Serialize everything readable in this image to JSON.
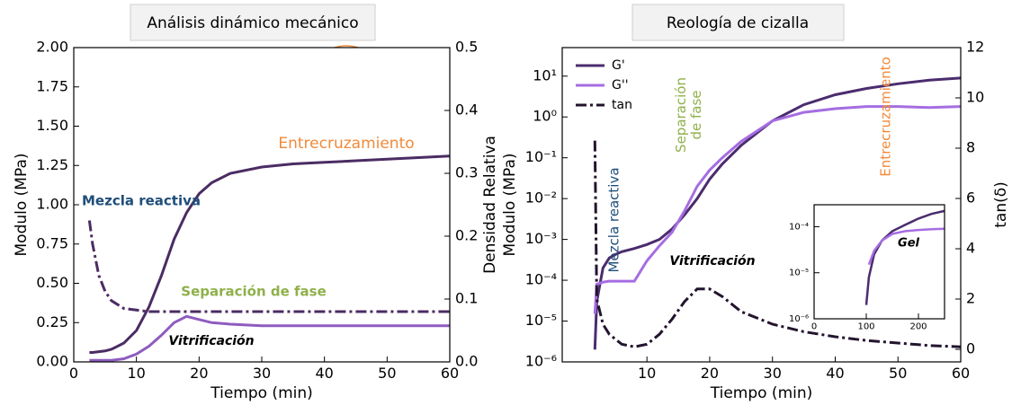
{
  "chart_data": [
    {
      "type": "line",
      "title": "Análisis dinámico mecánico",
      "x_label": "Tiempo (min)",
      "y_label": "Modulo (MPa)",
      "y2_label": "Densidad Relativa",
      "x": [
        2.5,
        3,
        4,
        5,
        6,
        8,
        10,
        12,
        14,
        16,
        18,
        20,
        22,
        25,
        30,
        35,
        40,
        45,
        50,
        55,
        60
      ],
      "xlim": [
        0,
        60
      ],
      "xticks": [
        0,
        10,
        20,
        30,
        40,
        50,
        60
      ],
      "ylim": [
        0,
        2
      ],
      "yticks": [
        {
          "value": 0,
          "label": "0.00"
        },
        {
          "value": 0.25,
          "label": "0.25"
        },
        {
          "value": 0.5,
          "label": "0.50"
        },
        {
          "value": 0.75,
          "label": "0.75"
        },
        {
          "value": 1,
          "label": "1.00"
        },
        {
          "value": 1.25,
          "label": "1.25"
        },
        {
          "value": 1.5,
          "label": "1.50"
        },
        {
          "value": 1.75,
          "label": "1.75"
        },
        {
          "value": 2,
          "label": "2.00"
        }
      ],
      "y2lim": [
        0,
        0.5
      ],
      "y2ticks": [
        {
          "value": 0,
          "label": "0.0"
        },
        0.1,
        0.2,
        0.3,
        0.4,
        0.5
      ],
      "series": [
        {
          "color": "#4b2c63",
          "style": "solid",
          "values": [
            0.06,
            0.06,
            0.065,
            0.07,
            0.08,
            0.12,
            0.2,
            0.35,
            0.55,
            0.78,
            0.95,
            1.07,
            1.14,
            1.2,
            1.24,
            1.26,
            1.27,
            1.28,
            1.29,
            1.3,
            1.31
          ]
        },
        {
          "color": "#8e5cc0",
          "style": "solid",
          "values": [
            0.01,
            0.01,
            0.01,
            0.01,
            0.01,
            0.02,
            0.05,
            0.1,
            0.17,
            0.25,
            0.29,
            0.27,
            0.25,
            0.24,
            0.23,
            0.23,
            0.23,
            0.23,
            0.23,
            0.23,
            0.23
          ]
        },
        {
          "color": "#4b2c63",
          "style": "dash-dot",
          "values": [
            0.9,
            0.75,
            0.55,
            0.45,
            0.39,
            0.34,
            0.33,
            0.32,
            0.32,
            0.32,
            0.32,
            0.32,
            0.32,
            0.32,
            0.32,
            0.32,
            0.32,
            0.32,
            0.32,
            0.32,
            0.32
          ]
        }
      ],
      "annotations": [
        {
          "text": "Entrecruzamiento",
          "color": "#f08a3a"
        },
        {
          "text": "Mezcla reactiva",
          "color": "#1f4e79"
        },
        {
          "text": "Separación de fase",
          "color": "#8fb04a"
        },
        {
          "text": "Vitrificación",
          "color": "#000000"
        }
      ]
    },
    {
      "type": "line",
      "title": "Reología de cizalla",
      "x_label": "Tiempo (min)",
      "y_label": "Modulo (MPa)",
      "y2_label": "tan(δ)",
      "y_scale": "log",
      "legend": "upper left",
      "x": [
        1.7,
        2,
        3,
        4,
        5,
        6,
        8,
        10,
        12,
        14,
        16,
        18,
        20,
        22,
        25,
        30,
        35,
        40,
        45,
        50,
        55,
        60
      ],
      "xlim": [
        -3.5,
        60
      ],
      "xticks": [
        10,
        20,
        30,
        40,
        50,
        60
      ],
      "ylim": [
        1e-06,
        50
      ],
      "yticks": [
        {
          "value": 1e-06,
          "label": "10⁻⁶"
        },
        {
          "value": 1e-05,
          "label": "10⁻⁵"
        },
        {
          "value": 0.0001,
          "label": "10⁻⁴"
        },
        {
          "value": 0.001,
          "label": "10⁻³"
        },
        {
          "value": 0.01,
          "label": "10⁻²"
        },
        {
          "value": 0.1,
          "label": "10⁻¹"
        },
        {
          "value": 1,
          "label": "10⁰"
        },
        {
          "value": 10,
          "label": "10¹"
        }
      ],
      "y2lim": [
        -0.5,
        12
      ],
      "y2ticks": [
        0,
        2,
        4,
        6,
        8,
        10,
        12
      ],
      "series": [
        {
          "name": "G'",
          "color": "#4b2c6e",
          "style": "solid",
          "values": [
            2e-06,
            3e-05,
            0.0002,
            0.00035,
            0.00043,
            0.0005,
            0.0006,
            0.00075,
            0.001,
            0.0018,
            0.004,
            0.01,
            0.03,
            0.07,
            0.2,
            0.8,
            2,
            3.5,
            5,
            6.5,
            8,
            9
          ]
        },
        {
          "name": "G''",
          "color": "#a56de2",
          "style": "solid",
          "values": [
            1.5e-05,
            8e-05,
            9e-05,
            9.5e-05,
            9.5e-05,
            9.5e-05,
            9.5e-05,
            0.0003,
            0.0007,
            0.0015,
            0.005,
            0.02,
            0.05,
            0.1,
            0.25,
            0.8,
            1.3,
            1.6,
            1.8,
            1.8,
            1.7,
            1.8
          ]
        },
        {
          "name": "tan",
          "color": "#23142e",
          "style": "dash-dot",
          "axis": "y2",
          "values": [
            8.3,
            2,
            1,
            0.6,
            0.4,
            0.2,
            0.1,
            0.2,
            0.6,
            1.2,
            1.9,
            2.4,
            2.4,
            2.1,
            1.5,
            1,
            0.7,
            0.5,
            0.35,
            0.25,
            0.15,
            0.1
          ]
        }
      ],
      "annotations": [
        {
          "text": "Mezcla reactiva",
          "color": "#1f4e79"
        },
        {
          "lines": [
            "Separación",
            "de fase"
          ],
          "color": "#8fb04a"
        },
        {
          "text": "Entrecruzamiento",
          "color": "#f08a3a"
        },
        {
          "text": "Vitrificación",
          "color": "#000000"
        }
      ]
    },
    {
      "type": "line",
      "y_scale": "log",
      "x": [
        100,
        105,
        115,
        130,
        150,
        175,
        200,
        225,
        250
      ],
      "xlim": [
        0,
        250
      ],
      "xticks": [
        0,
        100,
        200
      ],
      "ylim": [
        1e-06,
        0.0003
      ],
      "yticks": [
        {
          "value": 1e-06,
          "label": "10⁻⁶"
        },
        {
          "value": 1e-05,
          "label": "10⁻⁵"
        },
        {
          "value": 0.0001,
          "label": "10⁻⁴"
        }
      ],
      "series": [
        {
          "color": "#4b2c6e",
          "style": "solid",
          "values": [
            2e-06,
            8e-06,
            2.5e-05,
            5e-05,
            8e-05,
            0.00011,
            0.00015,
            0.00019,
            0.00022
          ]
        },
        {
          "color": "#a56de2",
          "style": "solid",
          "values": [
            null,
            1.5e-05,
            3e-05,
            5e-05,
            7e-05,
            8e-05,
            8.5e-05,
            8.8e-05,
            9e-05
          ]
        }
      ],
      "annotations": [
        {
          "text": "Gel",
          "color": "#000000"
        }
      ]
    }
  ]
}
